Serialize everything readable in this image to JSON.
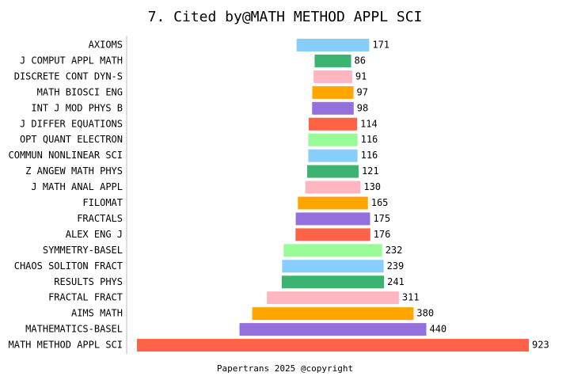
{
  "chart_data": {
    "type": "funnel-bar",
    "title": "7.  Cited by@MATH METHOD APPL SCI",
    "footer": "Papertrans 2025 @copyright",
    "categories": [
      "AXIOMS",
      "J COMPUT APPL MATH",
      "DISCRETE CONT DYN-S",
      "MATH BIOSCI ENG",
      "INT J MOD PHYS B",
      "J DIFFER EQUATIONS",
      "OPT QUANT ELECTRON",
      "COMMUN NONLINEAR SCI",
      "Z ANGEW MATH PHYS",
      "J MATH ANAL APPL",
      "FILOMAT",
      "FRACTALS",
      "ALEX ENG J",
      "SYMMETRY-BASEL",
      "CHAOS SOLITON FRACT",
      "RESULTS PHYS",
      "FRACTAL FRACT",
      "AIMS MATH",
      "MATHEMATICS-BASEL",
      "MATH METHOD APPL SCI"
    ],
    "values": [
      171,
      86,
      91,
      97,
      98,
      114,
      116,
      116,
      121,
      130,
      165,
      175,
      176,
      232,
      239,
      241,
      311,
      380,
      440,
      923
    ],
    "colors": [
      "#87cefa",
      "#3cb371",
      "#ffb6c1",
      "#ffa500",
      "#9370db",
      "#ff6347",
      "#98fb98",
      "#87cefa",
      "#3cb371",
      "#ffb6c1",
      "#ffa500",
      "#9370db",
      "#ff6347",
      "#98fb98",
      "#87cefa",
      "#3cb371",
      "#ffb6c1",
      "#ffa500",
      "#9370db",
      "#ff6347"
    ]
  }
}
